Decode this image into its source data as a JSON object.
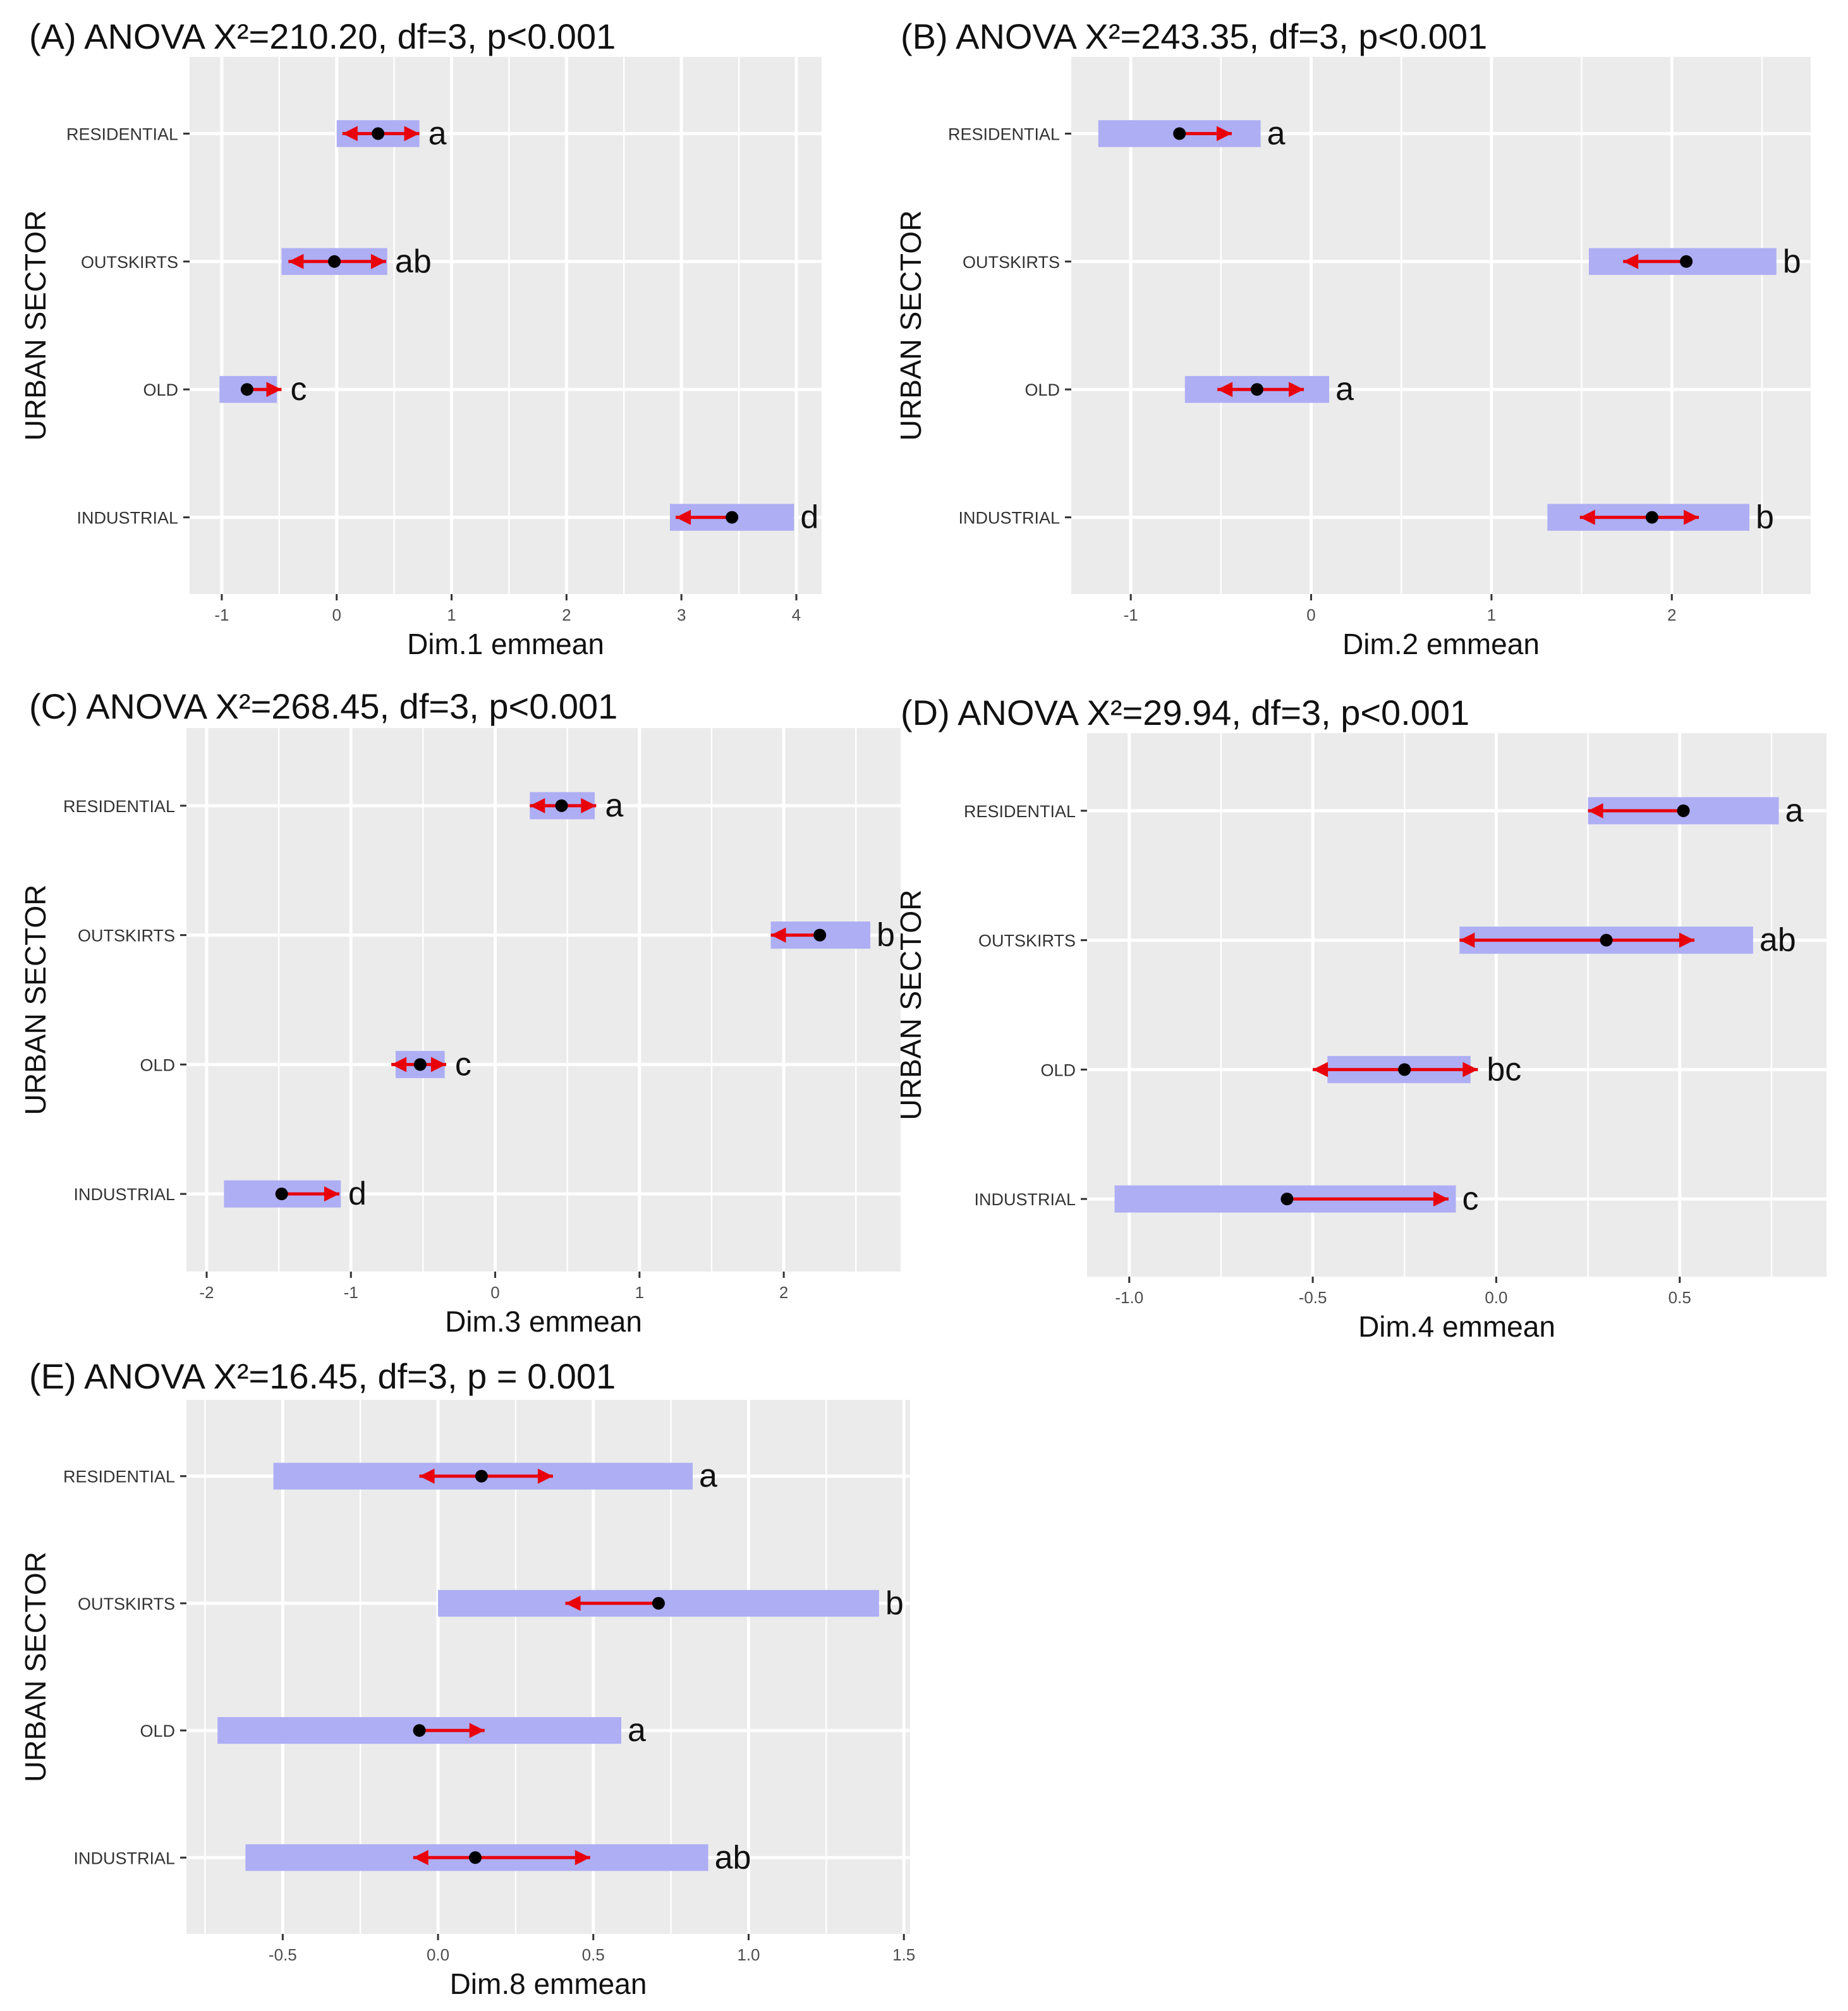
{
  "chart_data": [
    {
      "type": "interval",
      "title": "(A) ANOVA X²=210.20, df=3, p<0.001",
      "xlabel": "Dim.1 emmean",
      "ylabel": "URBAN SECTOR",
      "xlim": [
        -1.28,
        4.22
      ],
      "xticks": [
        -1,
        0,
        1,
        2,
        3,
        4
      ],
      "xtick_labels": [
        "-1",
        "0",
        "1",
        "2",
        "3",
        "4"
      ],
      "categories": [
        "RESIDENTIAL",
        "OUTSKIRTS",
        "OLD",
        "INDUSTRIAL"
      ],
      "series": [
        {
          "category": "RESIDENTIAL",
          "emmean": 0.36,
          "ci_low": 0.0,
          "ci_high": 0.72,
          "arrow_left": 0.05,
          "arrow_right": 0.72,
          "group": "a"
        },
        {
          "category": "OUTSKIRTS",
          "emmean": -0.02,
          "ci_low": -0.48,
          "ci_high": 0.44,
          "arrow_left": -0.42,
          "arrow_right": 0.43,
          "group": "ab"
        },
        {
          "category": "OLD",
          "emmean": -0.78,
          "ci_low": -1.02,
          "ci_high": -0.52,
          "arrow_left": null,
          "arrow_right": -0.48,
          "group": "c"
        },
        {
          "category": "INDUSTRIAL",
          "emmean": 3.44,
          "ci_low": 2.9,
          "ci_high": 3.98,
          "arrow_left": 2.95,
          "arrow_right": null,
          "group": "d"
        }
      ]
    },
    {
      "type": "interval",
      "title": "(B) ANOVA X²=243.35, df=3, p<0.001",
      "xlabel": "Dim.2 emmean",
      "ylabel": "URBAN SECTOR",
      "xlim": [
        -1.33,
        2.77
      ],
      "xticks": [
        -1,
        0,
        1,
        2
      ],
      "xtick_labels": [
        "-1",
        "0",
        "1",
        "2"
      ],
      "categories": [
        "RESIDENTIAL",
        "OUTSKIRTS",
        "OLD",
        "INDUSTRIAL"
      ],
      "series": [
        {
          "category": "RESIDENTIAL",
          "emmean": -0.73,
          "ci_low": -1.18,
          "ci_high": -0.28,
          "arrow_left": null,
          "arrow_right": -0.44,
          "group": "a"
        },
        {
          "category": "OUTSKIRTS",
          "emmean": 2.08,
          "ci_low": 1.54,
          "ci_high": 2.58,
          "arrow_left": 1.73,
          "arrow_right": null,
          "group": "b"
        },
        {
          "category": "OLD",
          "emmean": -0.3,
          "ci_low": -0.7,
          "ci_high": 0.1,
          "arrow_left": -0.52,
          "arrow_right": -0.04,
          "group": "a"
        },
        {
          "category": "INDUSTRIAL",
          "emmean": 1.89,
          "ci_low": 1.31,
          "ci_high": 2.43,
          "arrow_left": 1.49,
          "arrow_right": 2.15,
          "group": "b"
        }
      ]
    },
    {
      "type": "interval",
      "title": "(C) ANOVA X²=268.45, df=3, p<0.001",
      "xlabel": "Dim.3 emmean",
      "ylabel": "URBAN SECTOR",
      "xlim": [
        -2.14,
        2.81
      ],
      "xticks": [
        -2,
        -1,
        0,
        1,
        2
      ],
      "xtick_labels": [
        "-2",
        "-1",
        "0",
        "1",
        "2"
      ],
      "categories": [
        "RESIDENTIAL",
        "OUTSKIRTS",
        "OLD",
        "INDUSTRIAL"
      ],
      "series": [
        {
          "category": "RESIDENTIAL",
          "emmean": 0.46,
          "ci_low": 0.24,
          "ci_high": 0.69,
          "arrow_left": 0.24,
          "arrow_right": 0.7,
          "group": "a"
        },
        {
          "category": "OUTSKIRTS",
          "emmean": 2.25,
          "ci_low": 1.91,
          "ci_high": 2.6,
          "arrow_left": 1.91,
          "arrow_right": null,
          "group": "b"
        },
        {
          "category": "OLD",
          "emmean": -0.52,
          "ci_low": -0.69,
          "ci_high": -0.35,
          "arrow_left": -0.72,
          "arrow_right": -0.34,
          "group": "c"
        },
        {
          "category": "INDUSTRIAL",
          "emmean": -1.48,
          "ci_low": -1.88,
          "ci_high": -1.07,
          "arrow_left": null,
          "arrow_right": -1.08,
          "group": "d"
        }
      ]
    },
    {
      "type": "interval",
      "title": "(D) ANOVA X²=29.94, df=3, p<0.001",
      "xlabel": "Dim.4 emmean",
      "ylabel": "URBAN SECTOR",
      "xlim": [
        -1.115,
        0.9
      ],
      "xticks": [
        -1.0,
        -0.5,
        0.0,
        0.5
      ],
      "xtick_labels": [
        "-1.0",
        "-0.5",
        "0.0",
        "0.5"
      ],
      "categories": [
        "RESIDENTIAL",
        "OUTSKIRTS",
        "OLD",
        "INDUSTRIAL"
      ],
      "series": [
        {
          "category": "RESIDENTIAL",
          "emmean": 0.51,
          "ci_low": 0.25,
          "ci_high": 0.77,
          "arrow_left": 0.25,
          "arrow_right": null,
          "group": "a"
        },
        {
          "category": "OUTSKIRTS",
          "emmean": 0.3,
          "ci_low": -0.1,
          "ci_high": 0.7,
          "arrow_left": -0.1,
          "arrow_right": 0.54,
          "group": "ab"
        },
        {
          "category": "OLD",
          "emmean": -0.25,
          "ci_low": -0.46,
          "ci_high": -0.07,
          "arrow_left": -0.5,
          "arrow_right": -0.05,
          "group": "bc"
        },
        {
          "category": "INDUSTRIAL",
          "emmean": -0.57,
          "ci_low": -1.04,
          "ci_high": -0.11,
          "arrow_left": null,
          "arrow_right": -0.13,
          "group": "c"
        }
      ]
    },
    {
      "type": "interval",
      "title": "(E) ANOVA X²=16.45, df=3, p = 0.001",
      "xlabel": "Dim.8 emmean",
      "ylabel": "URBAN SECTOR",
      "xlim": [
        -0.81,
        1.52
      ],
      "xticks": [
        -0.5,
        0.0,
        0.5,
        1.0,
        1.5
      ],
      "xtick_labels": [
        "-0.5",
        "0.0",
        "0.5",
        "1.0",
        "1.5"
      ],
      "categories": [
        "RESIDENTIAL",
        "OUTSKIRTS",
        "OLD",
        "INDUSTRIAL"
      ],
      "series": [
        {
          "category": "RESIDENTIAL",
          "emmean": 0.14,
          "ci_low": -0.53,
          "ci_high": 0.82,
          "arrow_left": -0.06,
          "arrow_right": 0.37,
          "group": "a"
        },
        {
          "category": "OUTSKIRTS",
          "emmean": 0.71,
          "ci_low": 0.0,
          "ci_high": 1.42,
          "arrow_left": 0.41,
          "arrow_right": null,
          "group": "b"
        },
        {
          "category": "OLD",
          "emmean": -0.06,
          "ci_low": -0.71,
          "ci_high": 0.59,
          "arrow_left": null,
          "arrow_right": 0.15,
          "group": "a"
        },
        {
          "category": "INDUSTRIAL",
          "emmean": 0.12,
          "ci_low": -0.62,
          "ci_high": 0.87,
          "arrow_left": -0.08,
          "arrow_right": 0.49,
          "group": "ab"
        }
      ]
    }
  ],
  "colors": {
    "ci_bar": "#aeaef5",
    "comparison_arrow": "#e8000b",
    "mean_point": "#000000",
    "plot_background": "#ebebeb",
    "grid": "#ffffff"
  }
}
